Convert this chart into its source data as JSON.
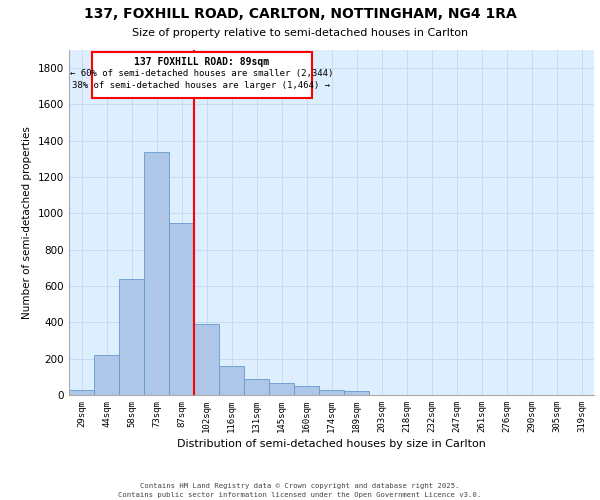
{
  "title_line1": "137, FOXHILL ROAD, CARLTON, NOTTINGHAM, NG4 1RA",
  "title_line2": "Size of property relative to semi-detached houses in Carlton",
  "xlabel": "Distribution of semi-detached houses by size in Carlton",
  "ylabel": "Number of semi-detached properties",
  "categories": [
    "29sqm",
    "44sqm",
    "58sqm",
    "73sqm",
    "87sqm",
    "102sqm",
    "116sqm",
    "131sqm",
    "145sqm",
    "160sqm",
    "174sqm",
    "189sqm",
    "203sqm",
    "218sqm",
    "232sqm",
    "247sqm",
    "261sqm",
    "276sqm",
    "290sqm",
    "305sqm",
    "319sqm"
  ],
  "values": [
    30,
    220,
    640,
    1340,
    950,
    390,
    160,
    90,
    65,
    50,
    30,
    20,
    0,
    0,
    0,
    0,
    0,
    0,
    0,
    0,
    0
  ],
  "bar_color": "#aec6e8",
  "bar_edge_color": "#6699cc",
  "grid_color": "#c8daf0",
  "bg_color": "#ddeeff",
  "vline_color": "red",
  "vline_x_index": 4,
  "annotation_title": "137 FOXHILL ROAD: 89sqm",
  "annotation_line1": "← 60% of semi-detached houses are smaller (2,344)",
  "annotation_line2": "38% of semi-detached houses are larger (1,464) →",
  "annotation_box_color": "red",
  "footer_line1": "Contains HM Land Registry data © Crown copyright and database right 2025.",
  "footer_line2": "Contains public sector information licensed under the Open Government Licence v3.0.",
  "ylim": [
    0,
    1900
  ],
  "yticks": [
    0,
    200,
    400,
    600,
    800,
    1000,
    1200,
    1400,
    1600,
    1800
  ]
}
